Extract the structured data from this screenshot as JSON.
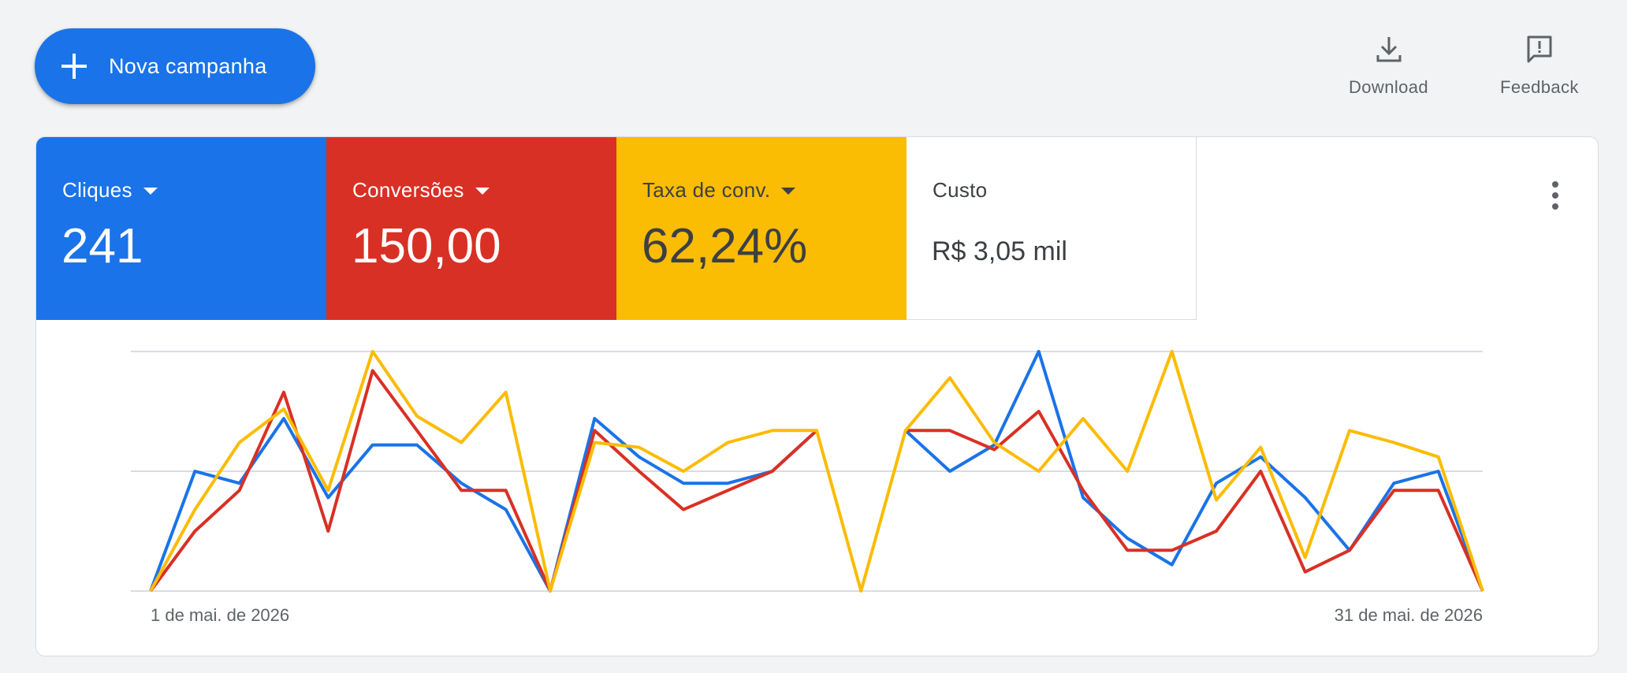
{
  "toolbar": {
    "new_campaign_label": "Nova campanha",
    "download_label": "Download",
    "feedback_label": "Feedback"
  },
  "metrics": [
    {
      "name": "Cliques",
      "value": "241",
      "color": "#1a73e8",
      "dropdown": true
    },
    {
      "name": "Conversões",
      "value": "150,00",
      "color": "#d93025",
      "dropdown": true
    },
    {
      "name": "Taxa de conv.",
      "value": "62,24%",
      "color": "#fbbc04",
      "dropdown": true
    },
    {
      "name": "Custo",
      "value": "R$ 3,05 mil",
      "color": "#ffffff",
      "dropdown": false
    }
  ],
  "chart_data": {
    "type": "line",
    "x_start_label": "1 de mai. de 2026",
    "x_end_label": "31 de mai. de 2026",
    "y_max": 1,
    "grid": true,
    "series": [
      {
        "color": "#1a73e8",
        "values": [
          0,
          0.5,
          0.45,
          0.72,
          0.39,
          0.61,
          0.61,
          0.45,
          0.34,
          0,
          0.72,
          0.56,
          0.45,
          0.45,
          0.5,
          0.67,
          null,
          0.67,
          0.5,
          0.61,
          1,
          0.39,
          0.22,
          0.11,
          0.45,
          0.56,
          0.39,
          0.17,
          0.45,
          0.5,
          0
        ]
      },
      {
        "color": "#d93025",
        "values": [
          0,
          0.25,
          0.42,
          0.83,
          0.25,
          0.92,
          0.67,
          0.42,
          0.42,
          0,
          0.67,
          0.5,
          0.34,
          0.42,
          0.5,
          0.67,
          null,
          0.67,
          0.67,
          0.59,
          0.75,
          0.42,
          0.17,
          0.17,
          0.25,
          0.5,
          0.08,
          0.17,
          0.42,
          0.42,
          0
        ]
      },
      {
        "color": "#fbbc04",
        "values": [
          0,
          0.34,
          0.62,
          0.76,
          0.42,
          1,
          0.73,
          0.62,
          0.83,
          0,
          0.62,
          0.6,
          0.5,
          0.62,
          0.67,
          0.67,
          0,
          0.67,
          0.89,
          0.62,
          0.5,
          0.72,
          0.5,
          1,
          0.38,
          0.6,
          0.14,
          0.67,
          0.62,
          0.56,
          0
        ]
      }
    ]
  }
}
